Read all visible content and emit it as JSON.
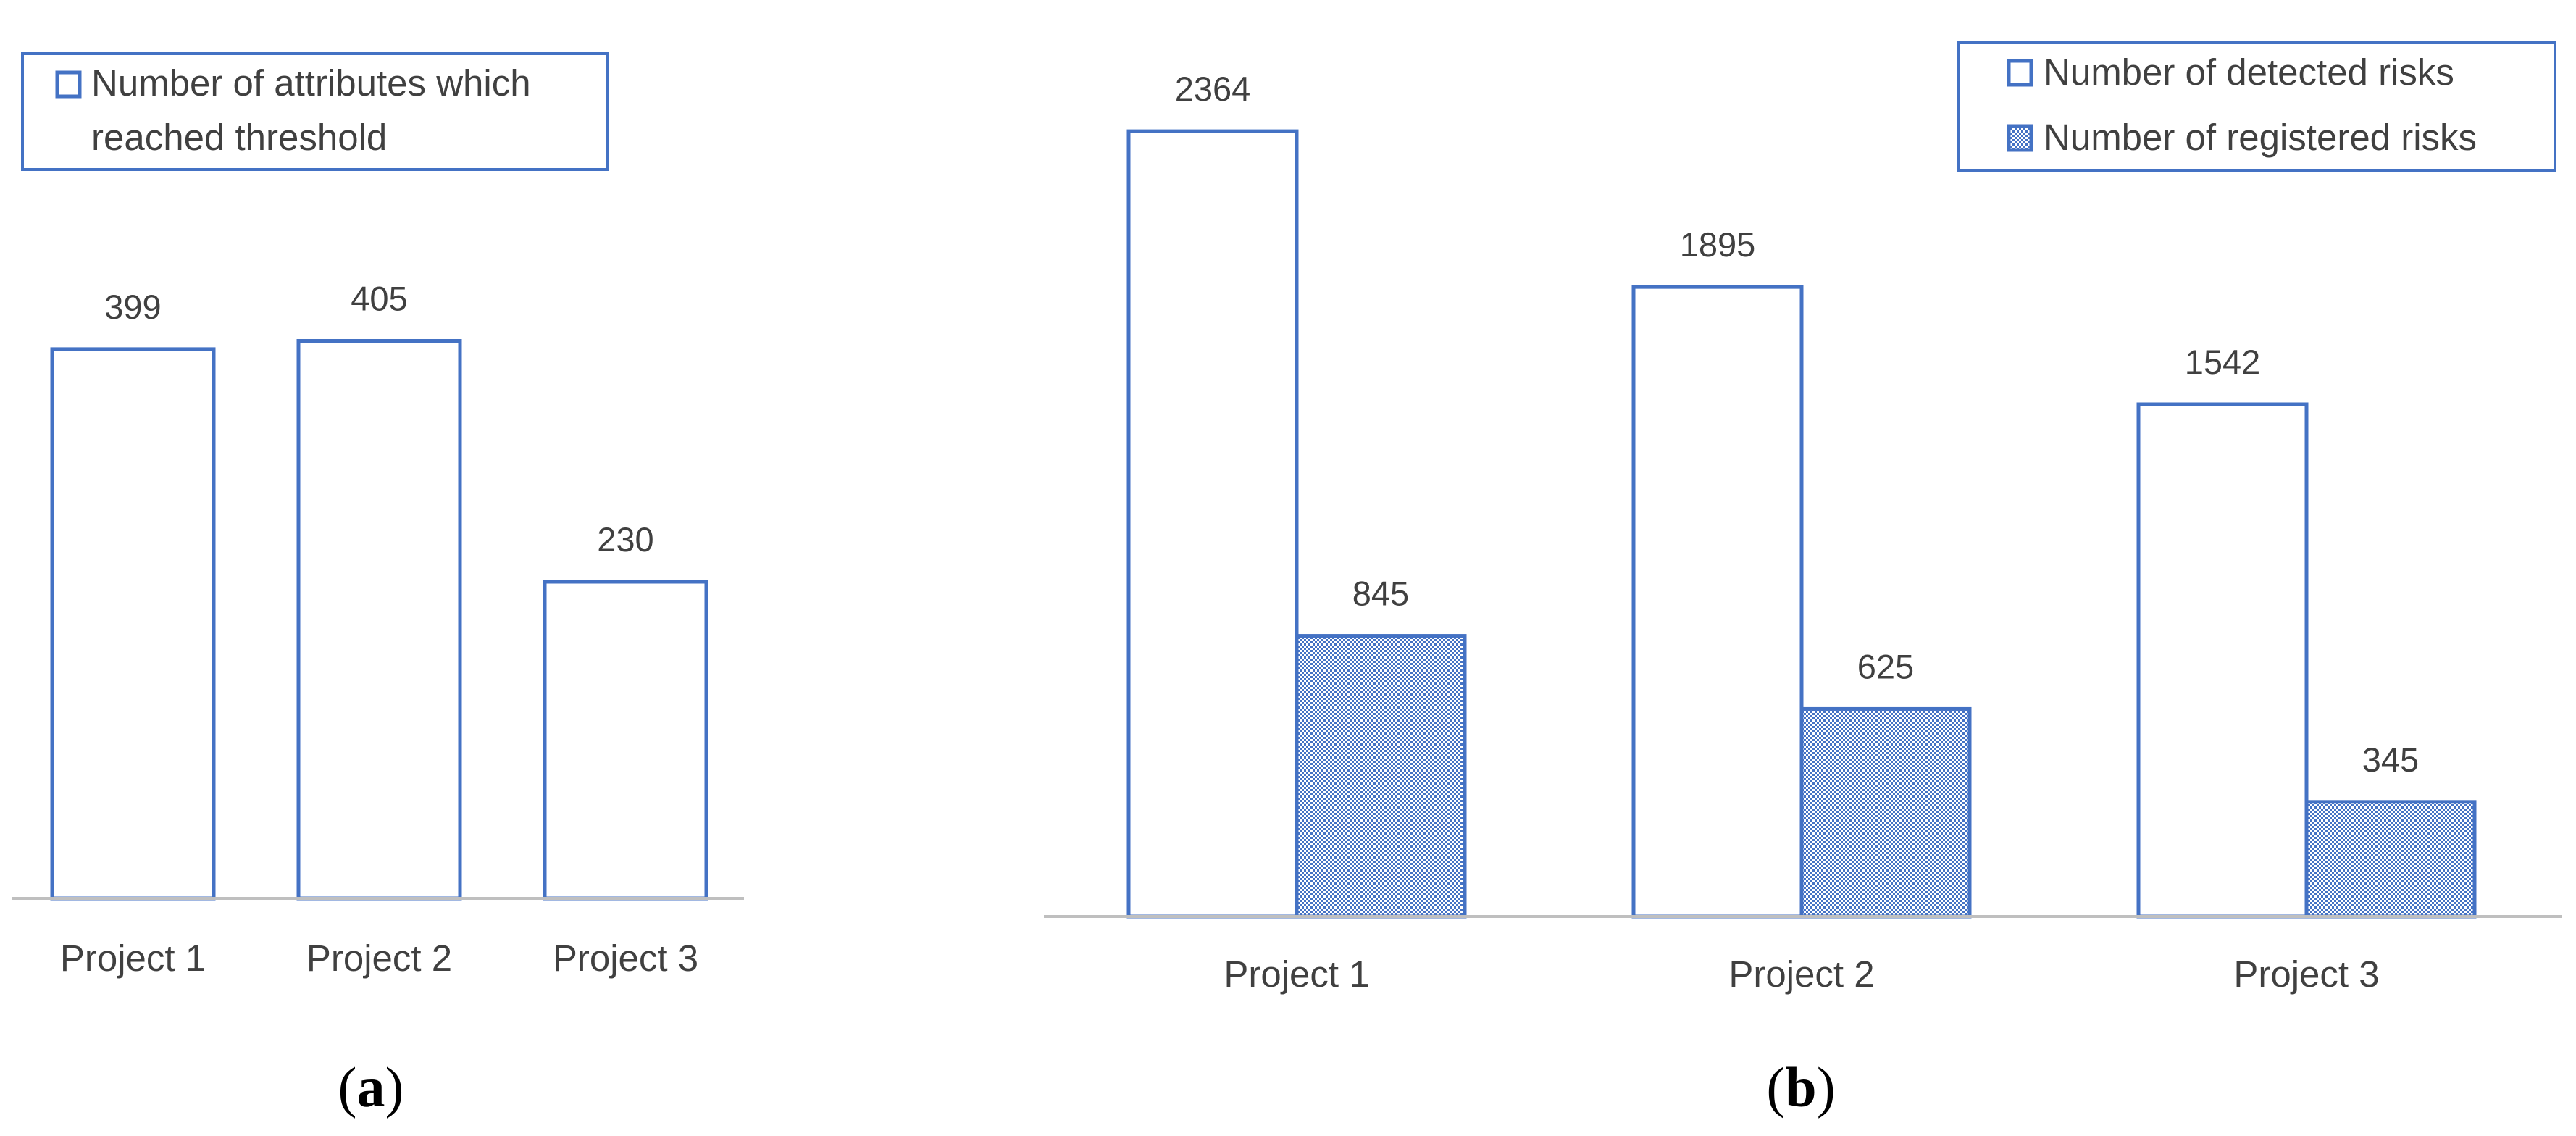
{
  "colors": {
    "bar_stroke": "#4472C4",
    "bar_fill": "#ffffff",
    "hatch_fill": "#4472C4",
    "axis": "#bfbfbf",
    "text": "#404040",
    "legend_border": "#4472C4"
  },
  "chart_data": [
    {
      "type": "bar",
      "panel_label": "a",
      "categories": [
        "Project 1",
        "Project 2",
        "Project 3"
      ],
      "series": [
        {
          "name": "Number of attributes which reached threshold",
          "values": [
            399,
            405,
            230
          ],
          "style": "outline"
        }
      ],
      "legend": {
        "placement": "top-left",
        "lines": [
          "Number of attributes which",
          "reached threshold"
        ]
      },
      "ylim": [
        0,
        450
      ],
      "grid": false
    },
    {
      "type": "bar",
      "panel_label": "b",
      "categories": [
        "Project 1",
        "Project 2",
        "Project 3"
      ],
      "series": [
        {
          "name": "Number of detected risks",
          "values": [
            2364,
            1895,
            1542
          ],
          "style": "outline"
        },
        {
          "name": "Number of registered risks",
          "values": [
            845,
            625,
            345
          ],
          "style": "hatched"
        }
      ],
      "legend": {
        "placement": "top-right"
      },
      "ylim": [
        0,
        2364
      ],
      "grid": false
    }
  ]
}
